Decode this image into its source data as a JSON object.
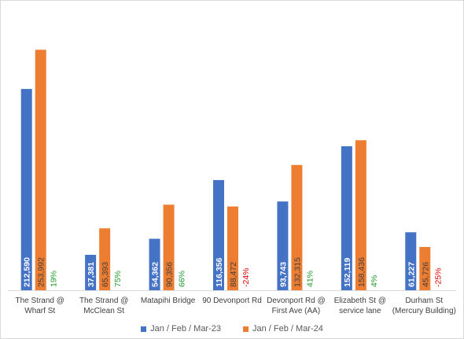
{
  "chart_data": {
    "type": "bar",
    "title": "",
    "xlabel": "",
    "ylabel": "",
    "categories": [
      [
        "The Strand @",
        "Wharf St"
      ],
      [
        "The Strand @",
        "McClean St"
      ],
      [
        "Matapihi Bridge"
      ],
      [
        "90 Devonport Rd"
      ],
      [
        "Devonport Rd @",
        "First Ave (AA)"
      ],
      [
        "Elizabeth St @",
        "service lane"
      ],
      [
        "Durham St",
        "(Mercury Building)"
      ]
    ],
    "series": [
      {
        "name": "Jan / Feb / Mar-23",
        "color": "#4472c4",
        "values": [
          212590,
          37381,
          54362,
          116356,
          93743,
          152119,
          61227
        ],
        "labels": [
          "212,590",
          "37,381",
          "54,362",
          "116,356",
          "93,743",
          "152,119",
          "61,227"
        ]
      },
      {
        "name": "Jan / Feb / Mar-24",
        "color": "#ed7d31",
        "values": [
          253992,
          65393,
          90356,
          88472,
          132315,
          158436,
          45726
        ],
        "labels": [
          "253,992",
          "65,393",
          "90,356",
          "88,472",
          "132,315",
          "158,436",
          "45,726"
        ]
      }
    ],
    "changes": [
      {
        "text": "19%",
        "color": "#1d9a2a"
      },
      {
        "text": "75%",
        "color": "#1d9a2a"
      },
      {
        "text": "66%",
        "color": "#1d9a2a"
      },
      {
        "text": "-24%",
        "color": "#e00000"
      },
      {
        "text": "41%",
        "color": "#1d9a2a"
      },
      {
        "text": "4%",
        "color": "#1d9a2a"
      },
      {
        "text": "-25%",
        "color": "#e00000"
      }
    ],
    "ylim": [
      0,
      270000
    ],
    "grid": false,
    "legend_position": "bottom"
  }
}
